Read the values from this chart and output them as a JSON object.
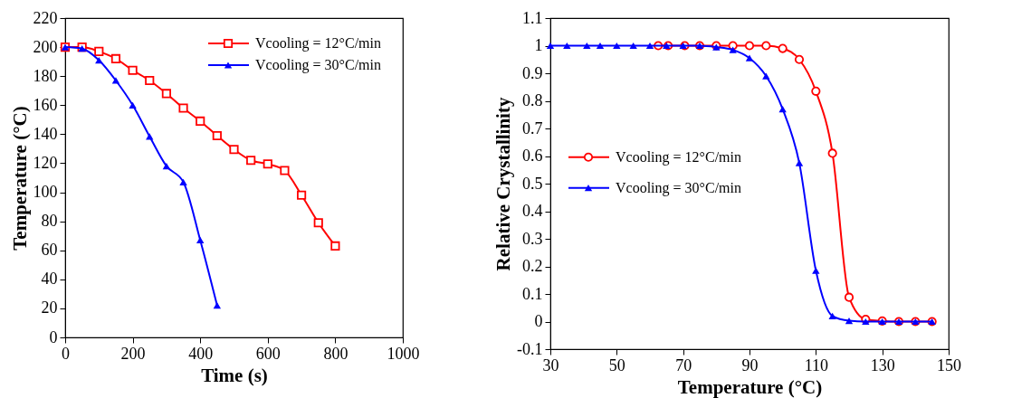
{
  "chart_data": [
    {
      "type": "line",
      "xlabel": "Time (s)",
      "ylabel": "Temperature (°C)",
      "xlim": [
        0,
        1000
      ],
      "xticks": [
        0,
        200,
        400,
        600,
        800,
        1000
      ],
      "ylim": [
        0,
        220
      ],
      "yticks": [
        0,
        20,
        40,
        60,
        80,
        100,
        120,
        140,
        160,
        180,
        200,
        220
      ],
      "grid": false,
      "legend": "top right",
      "series": [
        {
          "name": "Vcooling = 12°C/min",
          "color": "#ff0000",
          "marker": "square",
          "x": [
            0,
            50,
            100,
            150,
            200,
            250,
            300,
            350,
            400,
            450,
            500,
            550,
            600,
            650,
            700,
            750,
            800
          ],
          "values": [
            200,
            200,
            197,
            192,
            184,
            177,
            168,
            158,
            149,
            139,
            129.5,
            122,
            119.5,
            115,
            98,
            79,
            63
          ]
        },
        {
          "name": "Vcooling = 30°C/min",
          "color": "#0000ff",
          "marker": "triangle",
          "x": [
            0,
            50,
            100,
            150,
            200,
            250,
            300,
            350,
            400,
            450
          ],
          "values": [
            200,
            199,
            191,
            177,
            160,
            138.5,
            118,
            107,
            67,
            22
          ]
        }
      ]
    },
    {
      "type": "line",
      "xlabel": "Temperature (°C)",
      "ylabel": "Relative Crystallinity",
      "xlim": [
        30,
        150
      ],
      "xticks": [
        30,
        50,
        70,
        90,
        110,
        130,
        150
      ],
      "ylim": [
        -0.1,
        1.1
      ],
      "yticks": [
        -0.1,
        0,
        0.1,
        0.2,
        0.3,
        0.4,
        0.5,
        0.6,
        0.7,
        0.8,
        0.9,
        1,
        1.1
      ],
      "grid": false,
      "legend": "left",
      "series": [
        {
          "name": "Vcooling = 12°C/min",
          "color": "#ff0000",
          "marker": "circle",
          "x": [
            62.5,
            65.5,
            70.5,
            75,
            80,
            85,
            90,
            95,
            100,
            105,
            110,
            115,
            120,
            125,
            130,
            135,
            140,
            145
          ],
          "values": [
            1,
            1,
            1,
            1,
            1,
            1,
            1,
            1,
            0.99,
            0.95,
            0.835,
            0.61,
            0.088,
            0.008,
            0.002,
            0,
            0,
            0
          ]
        },
        {
          "name": "Vcooling = 30°C/min",
          "color": "#0000ff",
          "marker": "triangle",
          "x": [
            30,
            35,
            41,
            45,
            50,
            55,
            60,
            65,
            70,
            75,
            80,
            85,
            90,
            95,
            100,
            105,
            110,
            115,
            120,
            125,
            130,
            135,
            140,
            145
          ],
          "values": [
            1,
            1,
            1,
            1,
            1,
            1,
            1,
            1,
            1,
            1,
            0.995,
            0.985,
            0.955,
            0.89,
            0.77,
            0.575,
            0.185,
            0.02,
            0.003,
            0,
            0,
            0,
            0,
            0
          ]
        }
      ]
    }
  ]
}
